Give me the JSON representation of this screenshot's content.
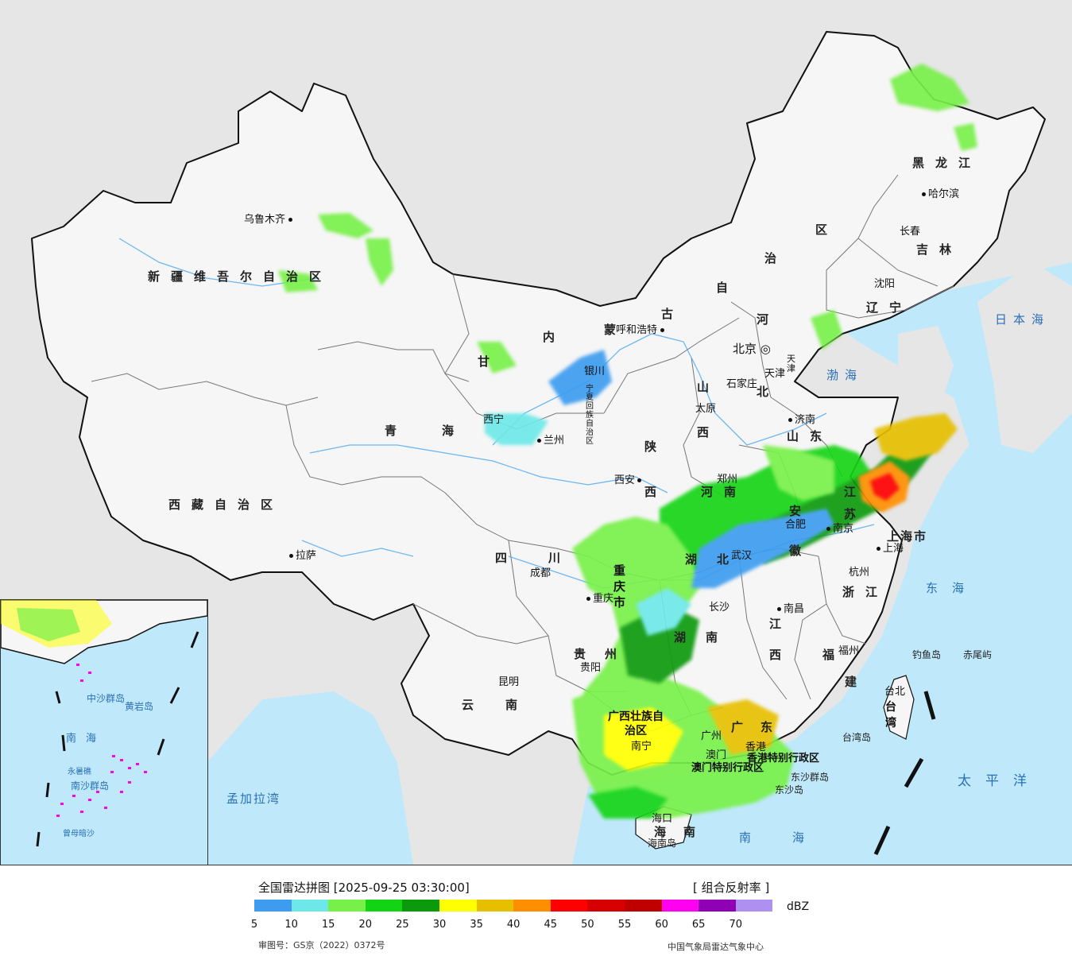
{
  "legend": {
    "title": "全国雷达拼图 [2025-09-25 03:30:00]",
    "product": "[ 组合反射率 ]",
    "unit": "dBZ",
    "ticks": [
      "5",
      "10",
      "15",
      "20",
      "25",
      "30",
      "35",
      "40",
      "45",
      "50",
      "55",
      "60",
      "65",
      "70"
    ],
    "colors": [
      "#3d9cf0",
      "#6de8e8",
      "#78f04a",
      "#12d412",
      "#0b9a0b",
      "#ffff00",
      "#e6c000",
      "#ff8f00",
      "#ff0000",
      "#d60000",
      "#c00000",
      "#ff00f0",
      "#9000b4",
      "#ad90f0"
    ],
    "approval": "审图号：GS京（2022）0372号",
    "source": "中国气象局雷达气象中心"
  },
  "map": {
    "colors": {
      "land": "#f6f6f6",
      "outside": "#e6e6e6",
      "sea": "#bfe9fb",
      "border": "#111111",
      "river": "#4aa8f0"
    },
    "provinces": {
      "xinjiang": "新疆维吾尔自治区",
      "xizang": "西藏自治区",
      "qinghai_1": "青",
      "qinghai_2": "海",
      "gansu": "甘",
      "neimenggu_1": "内",
      "neimenggu_2": "蒙",
      "neimenggu_3": "古",
      "neimenggu_4": "自",
      "neimenggu_5": "治",
      "neimenggu_6": "区",
      "heilongjiang": "黑龙江",
      "jilin": "吉林",
      "liaoning": "辽宁",
      "hebei_1": "河",
      "hebei_2": "北",
      "shanxi_1": "山",
      "shanxi_2": "西",
      "shaanxi_1": "陕",
      "shaanxi_2": "西",
      "ningxia": "宁夏回族自治区",
      "shandong": "山东",
      "henan": "河南",
      "jiangsu_1": "江",
      "jiangsu_2": "苏",
      "anhui_1": "安",
      "anhui_2": "徽",
      "hubei_1": "湖",
      "hubei_2": "北",
      "sichuan": "四川",
      "chongqing": "重庆市",
      "shanghai": "上海市",
      "zhejiang": "浙江",
      "jiangxi_1": "江",
      "jiangxi_2": "西",
      "hunan_1": "湖",
      "hunan_2": "南",
      "guizhou": "贵州",
      "yunnan": "云南",
      "fujian_1": "福",
      "fujian_2": "建",
      "guangxi": "广西壮族自治区",
      "guangdong": "广东",
      "hainan": "海南",
      "taiwan": "台湾",
      "hongkong": "香港特别行政区",
      "macau": "澳门特别行政区",
      "tianjin": "天津"
    },
    "cities": {
      "urumqi": "乌鲁木齐",
      "lhasa": "拉萨",
      "xining": "西宁",
      "lanzhou": "兰州",
      "yinchuan": "银川",
      "hohhot": "呼和浩特",
      "beijing": "北京",
      "tianjin": "天津",
      "shijiazhuang": "石家庄",
      "taiyuan": "太原",
      "jinan": "济南",
      "zhengzhou": "郑州",
      "xian": "西安",
      "hefei": "合肥",
      "nanjing": "南京",
      "shanghai": "上海",
      "wuhan": "武汉",
      "hangzhou": "杭州",
      "chengdu": "成都",
      "chongqing": "重庆",
      "nanchang": "南昌",
      "changsha": "长沙",
      "guiyang": "贵阳",
      "kunming": "昆明",
      "fuzhou": "福州",
      "taibei": "台北",
      "nanning": "南宁",
      "guangzhou": "广州",
      "hongkong": "香港",
      "macau": "澳门",
      "haikou": "海口",
      "harbin": "哈尔滨",
      "changchun": "长春",
      "shenyang": "沈阳"
    },
    "seas": {
      "bohai": "渤海",
      "japan_sea": "日本海",
      "east_sea": "东海",
      "pacific": "太平洋",
      "south_sea": "南海",
      "bengal": "孟加拉湾"
    },
    "islands": {
      "diaoyu": "钓鱼岛",
      "chiwei": "赤尾屿",
      "taiwan_island": "台湾岛",
      "dongsha_islands": "东沙群岛",
      "dongsha_island": "东沙岛",
      "hainan_island": "海南岛"
    },
    "inset": {
      "south_sea": "南海",
      "zhongsha": "中沙群岛",
      "huangyan": "黄岩岛",
      "nansha": "南沙群岛",
      "yongshu": "永暑礁",
      "zengmu": "曾母暗沙"
    }
  }
}
